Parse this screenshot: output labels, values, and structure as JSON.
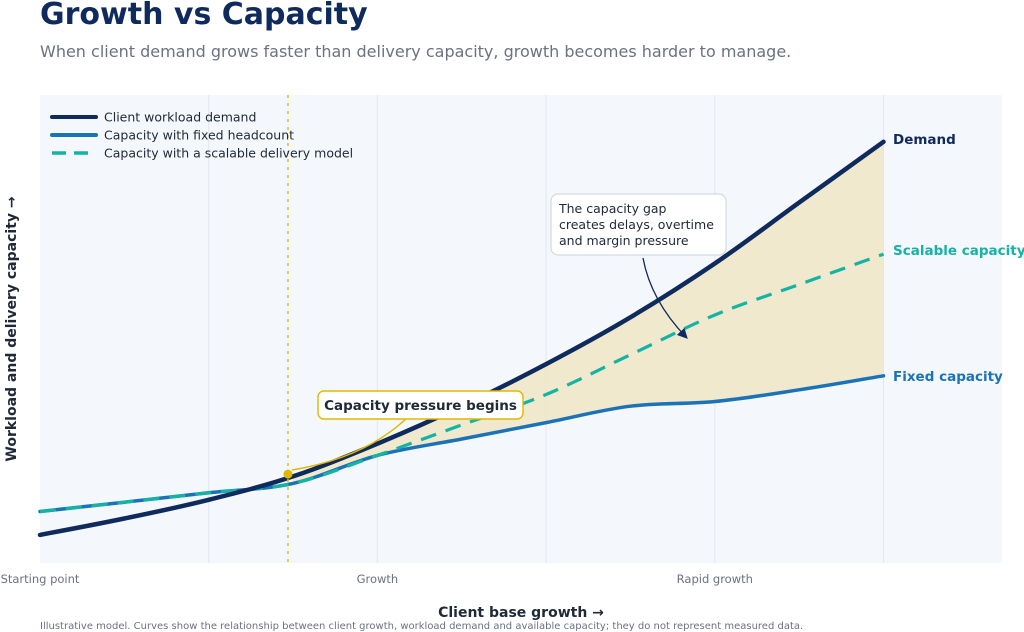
{
  "title": "Growth vs Capacity",
  "subtitle": "When client demand grows faster than delivery capacity, growth becomes harder to manage.",
  "footnote": "Illustrative model. Curves show the relationship between client growth, workload demand and available capacity; they do not represent measured data.",
  "colors": {
    "demand": "#0f2a5c",
    "fixed": "#1a73b8",
    "scalable": "#14b3a3",
    "gap_fill": "#efe6c4",
    "pressure": "#e0b800",
    "plot_bg": "#f4f7fb",
    "grid": "#e3e7ee"
  },
  "chart_data": {
    "type": "line",
    "title": "Growth vs Capacity",
    "xlabel": "Client base growth →",
    "ylabel": "Workload and delivery capacity →",
    "x_ticks": [
      {
        "x": 0,
        "label": "Starting point"
      },
      {
        "x": 2,
        "label": "Growth"
      },
      {
        "x": 4,
        "label": "Rapid growth"
      }
    ],
    "xlim": [
      0,
      5.7
    ],
    "ylim": [
      0,
      10
    ],
    "grid": true,
    "legend_position": "top-left",
    "x": [
      0,
      0.5,
      1,
      1.5,
      2,
      2.5,
      3,
      3.5,
      4,
      4.5,
      5
    ],
    "series": [
      {
        "name": "Client workload demand",
        "key": "demand",
        "end_label": "Demand",
        "style": "solid",
        "values": [
          0.6,
          0.95,
          1.35,
          1.85,
          2.55,
          3.35,
          4.25,
          5.25,
          6.4,
          7.7,
          9.0
        ]
      },
      {
        "name": "Capacity with fixed headcount",
        "key": "fixed",
        "end_label": "Fixed capacity",
        "style": "solid",
        "values": [
          1.1,
          1.3,
          1.5,
          1.7,
          2.3,
          2.65,
          3.0,
          3.35,
          3.45,
          3.7,
          4.0
        ]
      },
      {
        "name": "Capacity with a scalable delivery model",
        "key": "scalable",
        "end_label": "Scalable capacity",
        "style": "dashed",
        "values": [
          1.1,
          1.3,
          1.5,
          1.7,
          2.3,
          2.95,
          3.6,
          4.45,
          5.3,
          5.95,
          6.6
        ]
      }
    ],
    "pressure_point": {
      "x": 1.47,
      "y": 1.9
    },
    "annotations": [
      {
        "key": "pressure",
        "text": "Capacity pressure begins"
      },
      {
        "key": "gap",
        "lines": [
          "The capacity gap",
          "creates delays, overtime",
          "and margin pressure"
        ]
      }
    ]
  }
}
